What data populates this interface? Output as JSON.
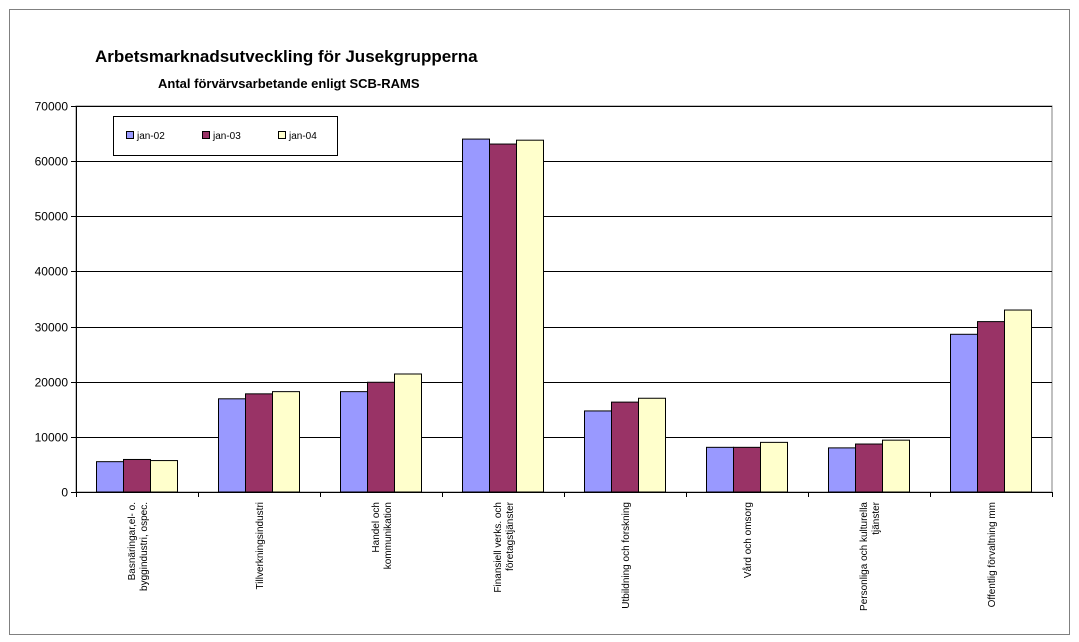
{
  "chart_data": {
    "type": "bar",
    "title": "Arbetsmarknadsutveckling för Jusekgrupperna",
    "subtitle": "Antal förvärvsarbetande enligt SCB-RAMS",
    "xlabel": "",
    "ylabel": "",
    "ylim": [
      0,
      70000
    ],
    "yticks": [
      0,
      10000,
      20000,
      30000,
      40000,
      50000,
      60000,
      70000
    ],
    "grid": true,
    "legend_position": "top-left",
    "categories": [
      [
        "Basnäringar,el- o.",
        "byggindustri, ospec."
      ],
      [
        "Tillverkningsindustri"
      ],
      [
        "Handel och",
        "kommunikation"
      ],
      [
        "Finansiell verks. och",
        "företagstjänster"
      ],
      [
        "Utbildning och forskning"
      ],
      [
        "Vård och omsorg"
      ],
      [
        "Personliga och kulturella",
        "tjänster"
      ],
      [
        "Offentlig förvaltning mm"
      ]
    ],
    "series": [
      {
        "name": "jan-02",
        "color": "#9999FF",
        "values": [
          5500,
          16900,
          18200,
          64000,
          14700,
          8100,
          8000,
          28600
        ]
      },
      {
        "name": "jan-03",
        "color": "#993366",
        "values": [
          5900,
          17800,
          19900,
          63100,
          16300,
          8100,
          8700,
          30900
        ]
      },
      {
        "name": "jan-04",
        "color": "#FFFFCC",
        "values": [
          5700,
          18200,
          21400,
          63800,
          17000,
          9000,
          9400,
          33000
        ]
      }
    ]
  }
}
